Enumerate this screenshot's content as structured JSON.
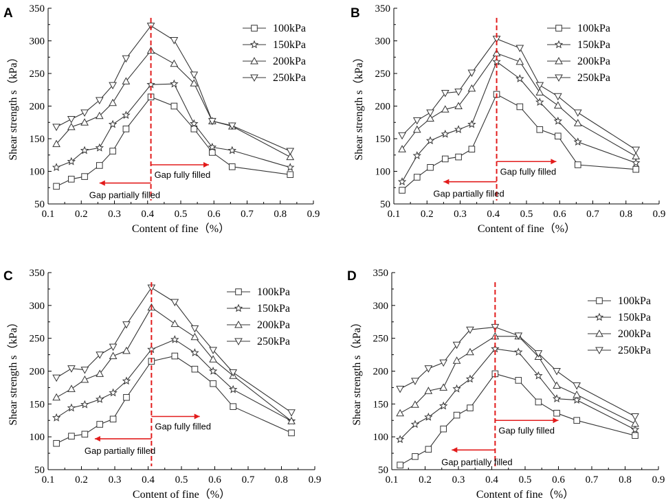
{
  "figure_letters": [
    "A",
    "B",
    "C",
    "D"
  ],
  "colors": {
    "series_line": "#333333",
    "marker_fill": "#ffffff",
    "divider": "#e21b1b",
    "arrow": "#e21b1b",
    "axis": "#000000"
  },
  "chart_data": [
    {
      "type": "line",
      "panel": "A",
      "xlabel": "Content of  fine（%）",
      "ylabel": "Shear strength s（kPa）",
      "xlim": [
        0.1,
        0.9
      ],
      "ylim": [
        50,
        350
      ],
      "xticks": [
        "0.1",
        "0.2",
        "0.3",
        "0.4",
        "0.5",
        "0.6",
        "0.7",
        "0.8",
        "0.9"
      ],
      "yticks": [
        "50",
        "100",
        "150",
        "200",
        "250",
        "300",
        "350"
      ],
      "x": [
        0.125,
        0.17,
        0.21,
        0.255,
        0.295,
        0.335,
        0.41,
        0.48,
        0.54,
        0.595,
        0.655,
        0.83
      ],
      "series": [
        {
          "name": "100kPa",
          "marker": "square",
          "values": [
            77,
            88,
            92,
            109,
            131,
            165,
            214,
            200,
            165,
            129,
            107,
            95
          ]
        },
        {
          "name": "150kPa",
          "marker": "star",
          "values": [
            106,
            115,
            132,
            136,
            172,
            186,
            233,
            234,
            173,
            137,
            132,
            106
          ]
        },
        {
          "name": "200kPa",
          "marker": "triangle-up",
          "values": [
            142,
            168,
            175,
            185,
            205,
            238,
            285,
            265,
            235,
            177,
            169,
            122
          ]
        },
        {
          "name": "250kPa",
          "marker": "triangle-down",
          "values": [
            168,
            180,
            190,
            209,
            232,
            273,
            323,
            301,
            248,
            177,
            170,
            131
          ]
        }
      ],
      "divider_x": 0.41,
      "annotations": [
        {
          "text": "Gap fully filled",
          "arrow": "right",
          "x_from": 0.41,
          "x_to": 0.585,
          "arrow_y": 110
        },
        {
          "text": "Gap partially filled",
          "arrow": "left",
          "x_from": 0.41,
          "x_to": 0.255,
          "arrow_y": 82
        }
      ],
      "legend": "top-right"
    },
    {
      "type": "line",
      "panel": "B",
      "xlabel": "Content of  fine（%）",
      "ylabel": "Shear strength s（kPa）",
      "xlim": [
        0.1,
        0.9
      ],
      "ylim": [
        50,
        350
      ],
      "xticks": [
        "0.1",
        "0.2",
        "0.3",
        "0.4",
        "0.5",
        "0.6",
        "0.7",
        "0.8",
        "0.9"
      ],
      "yticks": [
        "50",
        "100",
        "150",
        "200",
        "250",
        "300",
        "350"
      ],
      "x": [
        0.125,
        0.17,
        0.21,
        0.255,
        0.295,
        0.335,
        0.41,
        0.48,
        0.54,
        0.595,
        0.655,
        0.83
      ],
      "series": [
        {
          "name": "100kPa",
          "marker": "square",
          "values": [
            71,
            91,
            106,
            119,
            122,
            134,
            218,
            199,
            164,
            154,
            110,
            103
          ]
        },
        {
          "name": "150kPa",
          "marker": "star",
          "values": [
            84,
            124,
            147,
            157,
            164,
            172,
            268,
            242,
            206,
            177,
            145,
            113
          ]
        },
        {
          "name": "200kPa",
          "marker": "triangle-up",
          "values": [
            134,
            164,
            181,
            195,
            200,
            227,
            281,
            268,
            221,
            201,
            174,
            123
          ]
        },
        {
          "name": "250kPa",
          "marker": "triangle-down",
          "values": [
            155,
            178,
            190,
            220,
            222,
            251,
            303,
            289,
            232,
            215,
            190,
            133
          ]
        }
      ],
      "divider_x": 0.41,
      "annotations": [
        {
          "text": "Gap fully filled",
          "arrow": "right",
          "x_from": 0.41,
          "x_to": 0.59,
          "arrow_y": 115
        },
        {
          "text": "Gap partially filled",
          "arrow": "left",
          "x_from": 0.41,
          "x_to": 0.25,
          "arrow_y": 84
        }
      ],
      "legend": "top-right"
    },
    {
      "type": "line",
      "panel": "C",
      "xlabel": "Content of  fine（%）",
      "ylabel": "Shear strength s（kPa）",
      "xlim": [
        0.1,
        0.9
      ],
      "ylim": [
        50,
        350
      ],
      "xticks": [
        "0.1",
        "0.2",
        "0.3",
        "0.4",
        "0.5",
        "0.6",
        "0.7",
        "0.8",
        "0.9"
      ],
      "yticks": [
        "50",
        "100",
        "150",
        "200",
        "250",
        "300",
        "350"
      ],
      "x": [
        0.125,
        0.17,
        0.21,
        0.255,
        0.295,
        0.335,
        0.41,
        0.48,
        0.54,
        0.595,
        0.655,
        0.83
      ],
      "series": [
        {
          "name": "100kPa",
          "marker": "square",
          "values": [
            90,
            101,
            104,
            119,
            127,
            160,
            215,
            223,
            203,
            181,
            146,
            106
          ]
        },
        {
          "name": "150kPa",
          "marker": "star",
          "values": [
            129,
            144,
            149,
            157,
            167,
            185,
            233,
            248,
            228,
            200,
            172,
            124
          ]
        },
        {
          "name": "200kPa",
          "marker": "triangle-up",
          "values": [
            160,
            173,
            187,
            196,
            223,
            231,
            297,
            272,
            252,
            218,
            193,
            124
          ]
        },
        {
          "name": "250kPa",
          "marker": "triangle-down",
          "values": [
            190,
            204,
            202,
            225,
            237,
            271,
            327,
            305,
            265,
            232,
            198,
            137
          ]
        }
      ],
      "divider_x": 0.41,
      "annotations": [
        {
          "text": "Gap fully filled",
          "arrow": "right",
          "x_from": 0.41,
          "x_to": 0.555,
          "arrow_y": 131
        },
        {
          "text": "Gap partially filled",
          "arrow": "left",
          "x_from": 0.41,
          "x_to": 0.24,
          "arrow_y": 97
        }
      ],
      "legend": "top-right"
    },
    {
      "type": "line",
      "panel": "D",
      "xlabel": "Content of  fine（%）",
      "ylabel": "Shear strength s（kPa）",
      "xlim": [
        0.1,
        0.9
      ],
      "ylim": [
        50,
        350
      ],
      "xticks": [
        "0.1",
        "0.2",
        "0.3",
        "0.4",
        "0.5",
        "0.6",
        "0.7",
        "0.8",
        "0.9"
      ],
      "yticks": [
        "50",
        "100",
        "150",
        "200",
        "250",
        "300",
        "350"
      ],
      "x": [
        0.125,
        0.17,
        0.21,
        0.255,
        0.295,
        0.335,
        0.41,
        0.48,
        0.54,
        0.595,
        0.655,
        0.83
      ],
      "series": [
        {
          "name": "100kPa",
          "marker": "square",
          "values": [
            57,
            70,
            81,
            112,
            133,
            144,
            196,
            186,
            153,
            136,
            125,
            102
          ]
        },
        {
          "name": "150kPa",
          "marker": "star",
          "values": [
            96,
            119,
            130,
            147,
            173,
            188,
            234,
            229,
            193,
            158,
            156,
            111
          ]
        },
        {
          "name": "200kPa",
          "marker": "triangle-up",
          "values": [
            136,
            149,
            170,
            175,
            216,
            229,
            253,
            253,
            222,
            178,
            164,
            120
          ]
        },
        {
          "name": "250kPa",
          "marker": "triangle-down",
          "values": [
            173,
            185,
            204,
            213,
            240,
            263,
            267,
            254,
            227,
            200,
            178,
            131
          ]
        }
      ],
      "divider_x": 0.41,
      "annotations": [
        {
          "text": "Gap fully filled",
          "arrow": "right",
          "x_from": 0.41,
          "x_to": 0.6,
          "arrow_y": 125
        },
        {
          "text": "Gap partially filled",
          "arrow": "left",
          "x_from": 0.41,
          "x_to": 0.28,
          "arrow_y": 80
        }
      ],
      "legend": "top-right"
    }
  ]
}
